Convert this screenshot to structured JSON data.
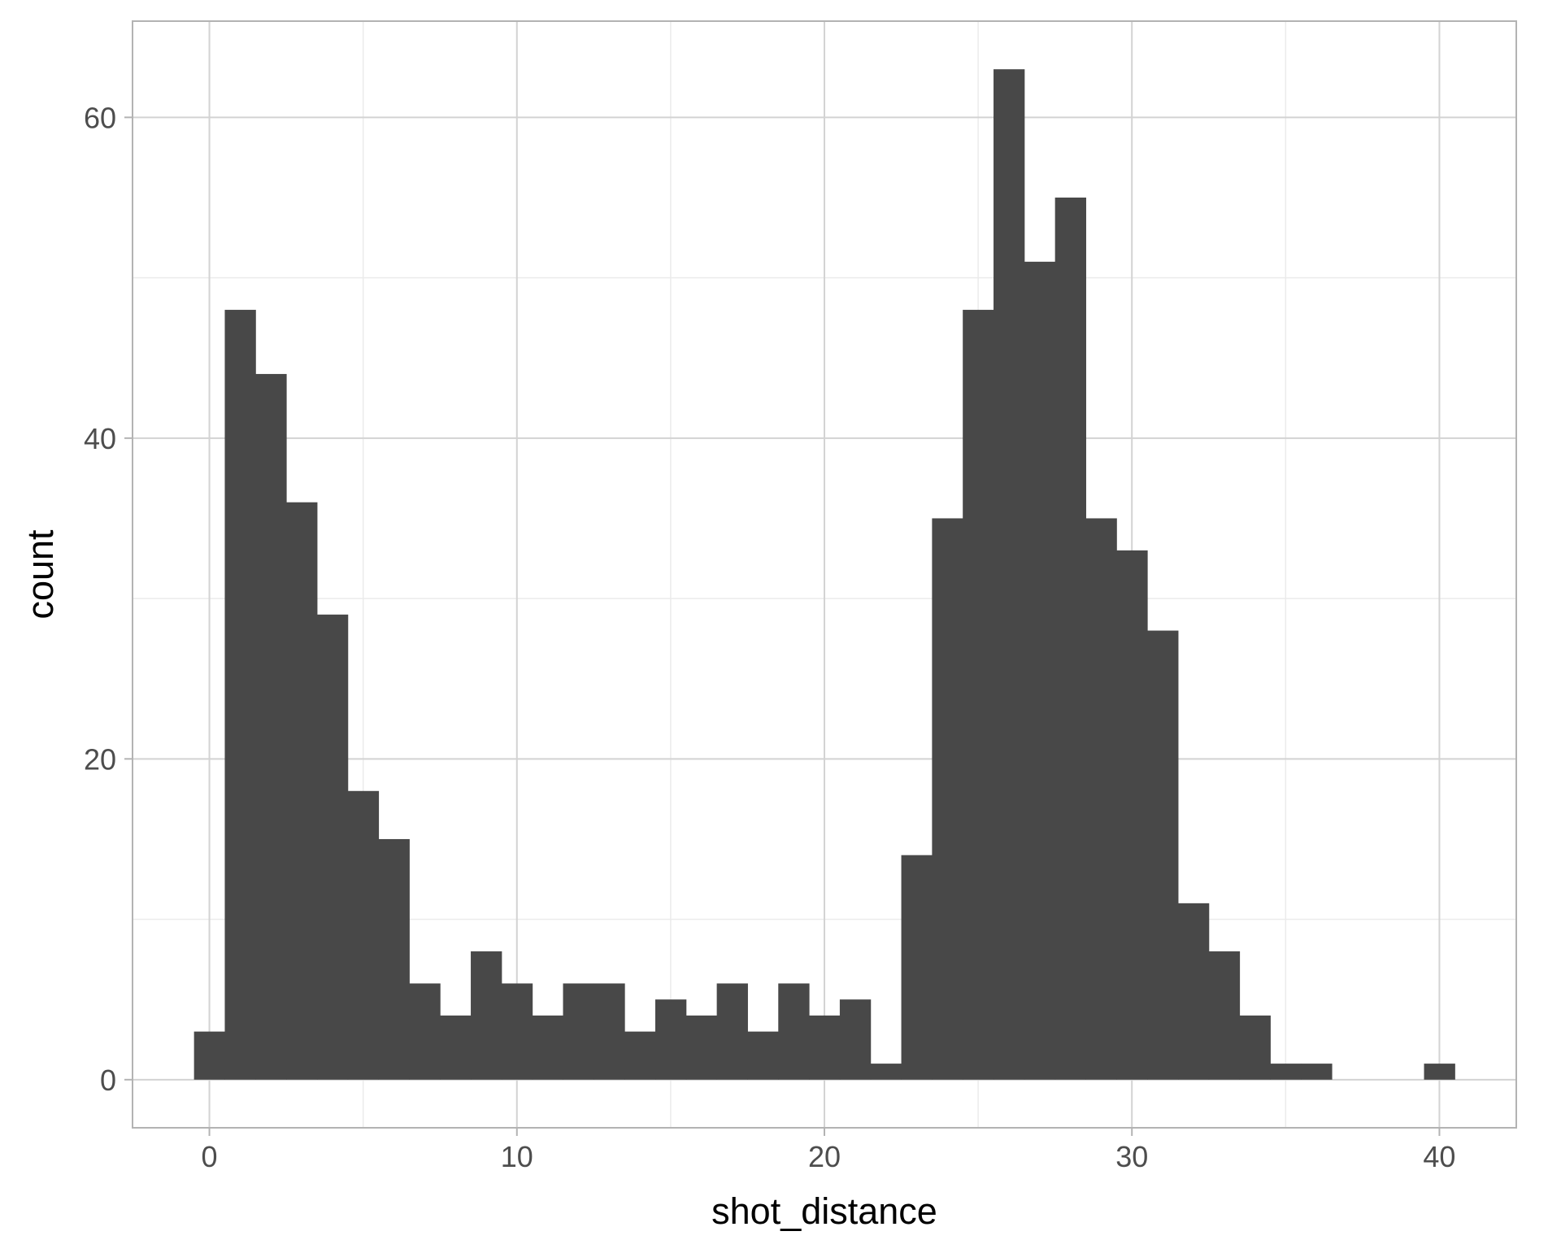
{
  "chart_data": {
    "type": "bar",
    "subtype": "histogram",
    "xlabel": "shot_distance",
    "ylabel": "count",
    "title": "",
    "bin_width": 1,
    "x": [
      0,
      1,
      2,
      3,
      4,
      5,
      6,
      7,
      8,
      9,
      10,
      11,
      12,
      13,
      14,
      15,
      16,
      17,
      18,
      19,
      20,
      21,
      22,
      23,
      24,
      25,
      26,
      27,
      28,
      29,
      30,
      31,
      32,
      33,
      34,
      35,
      36,
      37,
      38,
      39,
      40
    ],
    "values": [
      3,
      48,
      44,
      36,
      29,
      18,
      15,
      6,
      4,
      8,
      6,
      4,
      6,
      6,
      3,
      5,
      4,
      6,
      3,
      6,
      4,
      5,
      1,
      14,
      35,
      48,
      63,
      51,
      55,
      35,
      33,
      28,
      11,
      8,
      4,
      1,
      1,
      0,
      0,
      0,
      1
    ],
    "xlim": [
      -2.5,
      42.5
    ],
    "ylim": [
      -3,
      66
    ],
    "x_ticks": [
      0,
      10,
      20,
      30,
      40
    ],
    "y_ticks": [
      0,
      20,
      40,
      60
    ],
    "grid": true,
    "colors": {
      "bar_fill": "#484848",
      "grid_major": "#d3d3d3",
      "grid_minor": "#ebebeb",
      "panel_border": "#b3b3b3",
      "tick_text": "#4d4d4d",
      "axis_title": "#000000"
    }
  }
}
